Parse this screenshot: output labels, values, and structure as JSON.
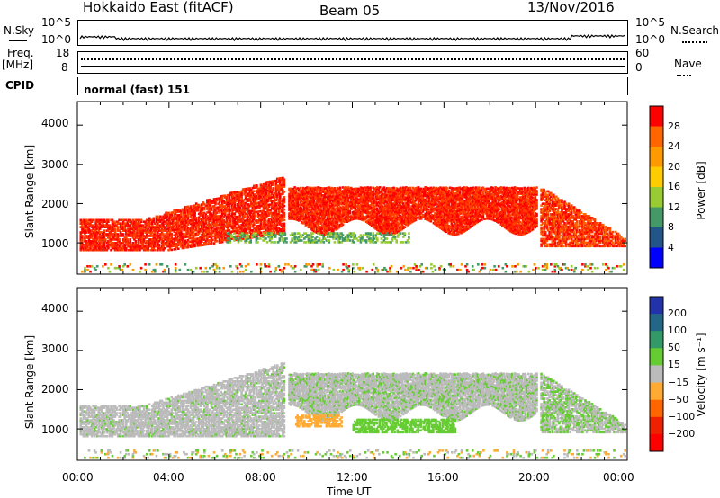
{
  "header": {
    "title": "Hokkaido East (fitACF)",
    "beam": "Beam 05",
    "date": "13/Nov/2016"
  },
  "top_panels": {
    "nsky_label": "N.Sky",
    "nsearch_label": "N.Search",
    "nsky_ticks": [
      "10^5",
      "10^0"
    ],
    "nsearch_ticks": [
      "10^5",
      "10^0"
    ],
    "freq_label": "Freq.",
    "freq_unit": "[MHz]",
    "freq_ticks": [
      "18",
      "8"
    ],
    "nave_label": "Nave",
    "nave_ticks": [
      "60",
      "0"
    ],
    "cpid_label": "CPID",
    "cpid_value": "normal (fast) 151"
  },
  "chart_data": [
    {
      "type": "heatmap",
      "ylabel": "Slant Range [km]",
      "yticks": [
        "4000",
        "3000",
        "2000",
        "1000"
      ],
      "ylim": [
        200,
        4600
      ],
      "colorbar": {
        "label": "Power [dB]",
        "ticks": [
          "28",
          "24",
          "20",
          "16",
          "12",
          "8",
          "4"
        ],
        "colors": [
          "#ff0000",
          "#ff6600",
          "#ff9900",
          "#ffcc00",
          "#99cc33",
          "#449966",
          "#225588",
          "#0000ff"
        ]
      }
    },
    {
      "type": "heatmap",
      "ylabel": "Slant Range [km]",
      "yticks": [
        "4000",
        "3000",
        "2000",
        "1000"
      ],
      "ylim": [
        200,
        4600
      ],
      "colorbar": {
        "label": "Velocity [m s⁻¹]",
        "ticks": [
          "200",
          "100",
          "50",
          "15",
          "−15",
          "−50",
          "−100",
          "−200"
        ],
        "colors": [
          "#2233aa",
          "#226688",
          "#339966",
          "#66cc33",
          "#bbbbbb",
          "#ffaa33",
          "#ff6600",
          "#ee2200",
          "#ff0000"
        ]
      }
    }
  ],
  "xaxis": {
    "label": "Time UT",
    "ticks": [
      "00:00",
      "04:00",
      "08:00",
      "12:00",
      "16:00",
      "20:00",
      "00:00"
    ]
  }
}
